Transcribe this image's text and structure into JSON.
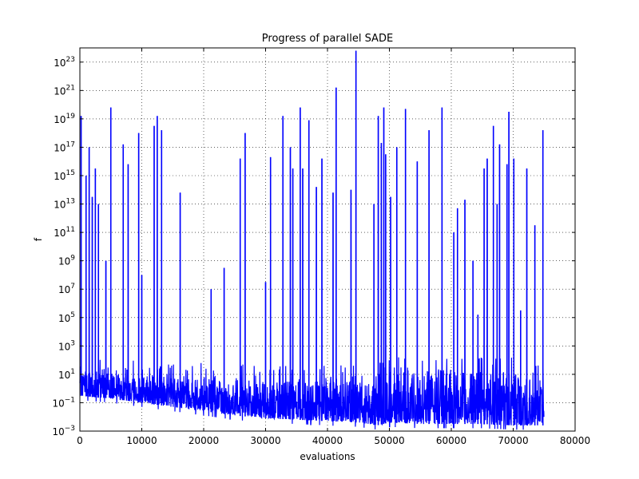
{
  "chart_data": {
    "type": "line",
    "title": "Progress of parallel SADE",
    "xlabel": "evaluations",
    "ylabel": "f",
    "xlim": [
      0,
      80000
    ],
    "ylim_log10": [
      -3,
      24
    ],
    "yscale": "log",
    "grid": true,
    "grid_style": "dotted",
    "x_ticks": [
      0,
      10000,
      20000,
      30000,
      40000,
      50000,
      60000,
      70000,
      80000
    ],
    "x_tick_labels": [
      "0",
      "10000",
      "20000",
      "30000",
      "40000",
      "50000",
      "60000",
      "70000",
      "80000"
    ],
    "y_tick_exponents": [
      -3,
      -1,
      1,
      3,
      5,
      7,
      9,
      11,
      13,
      15,
      17,
      19,
      21,
      23
    ],
    "y_tick_base": "10",
    "series": [
      {
        "color": "#0000ff",
        "envelope_log10": {
          "note": "dense noisy trace; lower and typical levels in log10(f)",
          "x": [
            0,
            2000,
            5000,
            10000,
            15000,
            20000,
            25000,
            30000,
            35000,
            40000,
            45000,
            48000,
            50000,
            55000,
            60000,
            65000,
            70000,
            75000
          ],
          "lower": [
            -0.5,
            -0.6,
            -0.7,
            -1.0,
            -1.3,
            -1.6,
            -1.9,
            -2.1,
            -2.2,
            -2.3,
            -2.4,
            -2.6,
            -2.4,
            -2.5,
            -2.5,
            -2.5,
            -2.6,
            -2.6
          ],
          "upper": [
            1.5,
            1.3,
            1.0,
            0.9,
            0.8,
            0.7,
            0.6,
            0.5,
            0.5,
            0.5,
            0.5,
            0.6,
            1.3,
            1.2,
            1.2,
            1.1,
            1.1,
            1.0
          ]
        },
        "spikes_log10": {
          "x": [
            200,
            1000,
            1500,
            2000,
            2500,
            3000,
            4200,
            5000,
            7000,
            7800,
            9500,
            10000,
            12000,
            12500,
            13200,
            16200,
            21200,
            23300,
            25900,
            26700,
            30000,
            30800,
            32800,
            34000,
            34400,
            35600,
            36000,
            37000,
            38200,
            39100,
            40900,
            41400,
            43800,
            44600,
            47500,
            48200,
            48700,
            49100,
            49400,
            50200,
            51200,
            52600,
            54500,
            56400,
            58500,
            60400,
            61000,
            62200,
            63500,
            64300,
            65300,
            65800,
            66800,
            67400,
            67800,
            69000,
            69300,
            70100,
            71200,
            72200,
            73500,
            74800
          ],
          "y": [
            19.2,
            15.0,
            17.0,
            13.5,
            15.5,
            13.0,
            9.0,
            19.8,
            17.2,
            15.8,
            18.0,
            8.0,
            18.5,
            19.2,
            18.2,
            13.8,
            7.0,
            8.5,
            16.2,
            18.0,
            7.5,
            16.3,
            19.2,
            17.0,
            15.5,
            19.8,
            15.5,
            18.9,
            14.2,
            16.2,
            13.8,
            21.2,
            14.0,
            23.8,
            13.0,
            19.2,
            17.3,
            19.8,
            16.5,
            13.5,
            17.0,
            19.7,
            16.0,
            18.2,
            19.8,
            11.0,
            12.7,
            13.3,
            9.0,
            5.2,
            15.5,
            16.2,
            18.5,
            13.0,
            17.2,
            15.8,
            19.5,
            16.2,
            5.5,
            15.5,
            11.5,
            18.2
          ]
        }
      }
    ]
  }
}
